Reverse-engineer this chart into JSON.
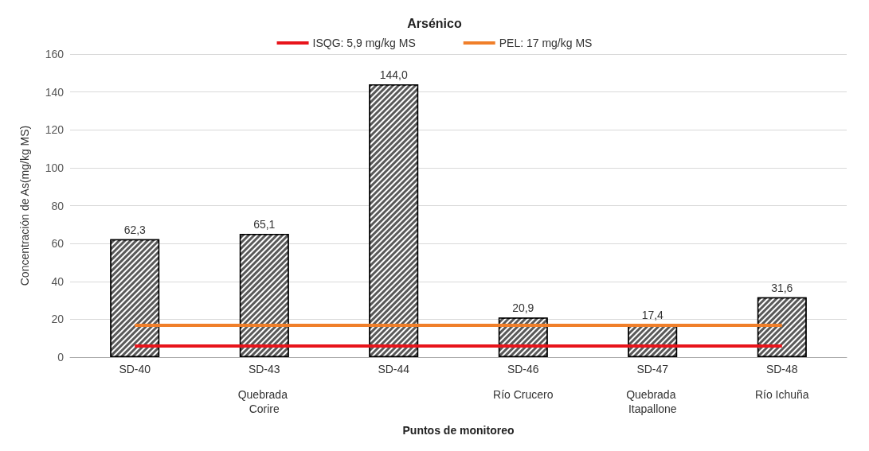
{
  "chart_data": {
    "type": "bar",
    "title": "Arsénico",
    "xlabel": "Puntos de monitoreo",
    "ylabel": "Concentración de As(mg/kg MS)",
    "categories": [
      "SD-40",
      "SD-43",
      "SD-44",
      "SD-46",
      "SD-47",
      "SD-48"
    ],
    "values": [
      62.3,
      65.1,
      144.0,
      20.9,
      17.4,
      31.6
    ],
    "color": "#595959",
    "ylim": [
      0,
      160
    ],
    "yticks": [
      0,
      20,
      40,
      60,
      80,
      100,
      120,
      140,
      160
    ],
    "grid": "y",
    "value_labels": [
      "62,3",
      "65,1",
      "144,0",
      "20,9",
      "17,4",
      "31,6"
    ],
    "legend": "top",
    "ref_lines": [
      {
        "axis": "y",
        "value": 5.9,
        "label": "ISQG: 5,9 mg/kg MS",
        "color": "#e8141b"
      },
      {
        "axis": "y",
        "value": 17,
        "label": "PEL: 17 mg/kg MS",
        "color": "#f07f2a"
      }
    ],
    "annotations": [
      "Quebrada Corire",
      "Río Crucero",
      "Quebrada Itapallone",
      "Río Ichuña"
    ]
  }
}
